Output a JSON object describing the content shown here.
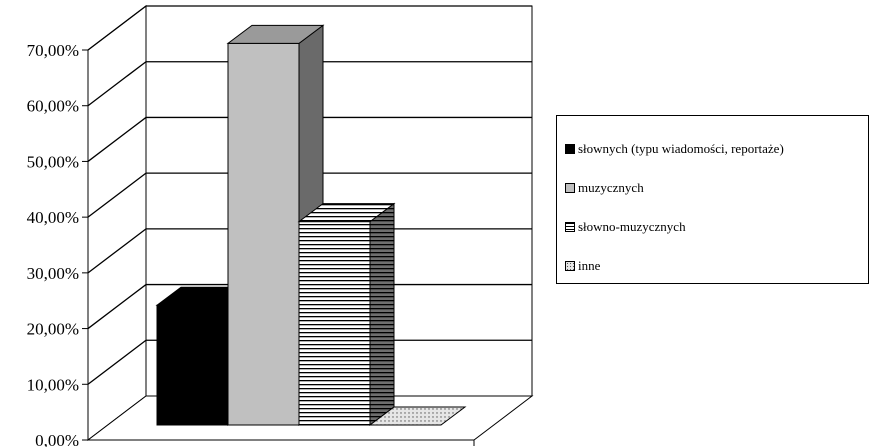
{
  "chart_data": {
    "type": "bar",
    "title": "",
    "xlabel": "",
    "ylabel": "",
    "ylim": [
      0,
      70
    ],
    "yticks": [
      "0,00%",
      "10,00%",
      "20,00%",
      "30,00%",
      "40,00%",
      "50,00%",
      "60,00%",
      "70,00%"
    ],
    "grid": true,
    "legend_position": "right",
    "series": [
      {
        "name": "słownych (typu wiadomości, reportaże)",
        "value": 21.5,
        "pattern": "solid-black"
      },
      {
        "name": "muzycznych",
        "value": 68.5,
        "pattern": "solid-gray"
      },
      {
        "name": "słowno-muzycznych",
        "value": 36.5,
        "pattern": "horizontal-stripes"
      },
      {
        "name": "inne",
        "value": 0,
        "pattern": "dotted"
      }
    ]
  }
}
